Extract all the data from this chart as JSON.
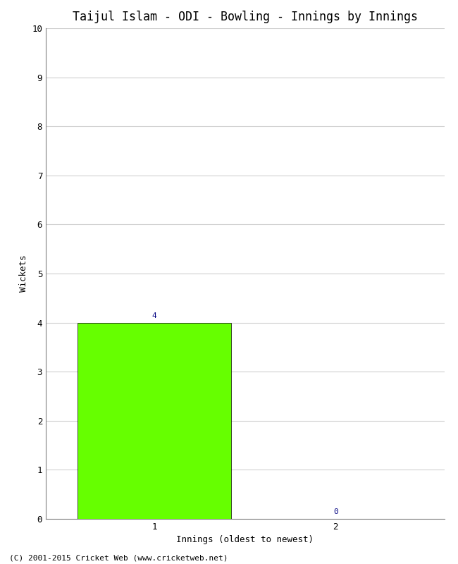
{
  "title": "Taijul Islam - ODI - Bowling - Innings by Innings",
  "xlabel": "Innings (oldest to newest)",
  "ylabel": "Wickets",
  "categories": [
    1,
    2
  ],
  "values": [
    4,
    0
  ],
  "bar_color": "#66ff00",
  "bar_edge_color": "#000000",
  "ylim": [
    0,
    10
  ],
  "yticks": [
    0,
    1,
    2,
    3,
    4,
    5,
    6,
    7,
    8,
    9,
    10
  ],
  "annotation_color": "#000080",
  "annotation_fontsize": 8,
  "title_fontsize": 12,
  "label_fontsize": 9,
  "tick_fontsize": 9,
  "footer": "(C) 2001-2015 Cricket Web (www.cricketweb.net)",
  "footer_fontsize": 8,
  "background_color": "#ffffff",
  "grid_color": "#d0d0d0",
  "bar_width": 0.85,
  "xlim_left": 0.4,
  "xlim_right": 2.6
}
